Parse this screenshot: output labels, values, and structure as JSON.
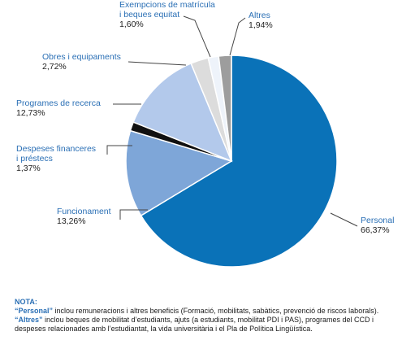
{
  "chart_data": {
    "type": "pie",
    "slices": [
      {
        "label": "Personal",
        "value_label": "66,37%",
        "value": 66.37,
        "color": "#0a72b8"
      },
      {
        "label": "Funcionament",
        "value_label": "13,26%",
        "value": 13.26,
        "color": "#7ea6d8"
      },
      {
        "label": "Despeses financeres i préstecs",
        "label_lines": [
          "Despeses financeres",
          "i préstecs"
        ],
        "value_label": "1,37%",
        "value": 1.37,
        "color": "#111111"
      },
      {
        "label": "Programes de recerca",
        "value_label": "12,73%",
        "value": 12.73,
        "color": "#b3c9eb"
      },
      {
        "label": "Obres i equipaments",
        "value_label": "2,72%",
        "value": 2.72,
        "color": "#dcdcdc"
      },
      {
        "label": "Exempcions de matrícula i beques equitat",
        "label_lines": [
          "Exempcions de matrícula",
          "i beques equitat"
        ],
        "value_label": "1,60%",
        "value": 1.6,
        "color": "#eef3fa"
      },
      {
        "label": "Altres",
        "value_label": "1,94%",
        "value": 1.94,
        "color": "#9d9d9d"
      }
    ]
  },
  "note": {
    "title": "NOTA:",
    "personal_key": "“Personal”",
    "personal_text": " inclou remuneracions i altres beneficis (Formació, mobilitats, sabàtics, prevenció de riscos laborals).",
    "altres_key": "“Altres”",
    "altres_text": " inclou beques de mobilitat d’estudiants, ajuts (a estudiants, mobilitat PDI i PAS), programes del CCD i despeses relacionades amb l’estudiantat, la vida universitària i el Pla de Política Lingüística."
  }
}
